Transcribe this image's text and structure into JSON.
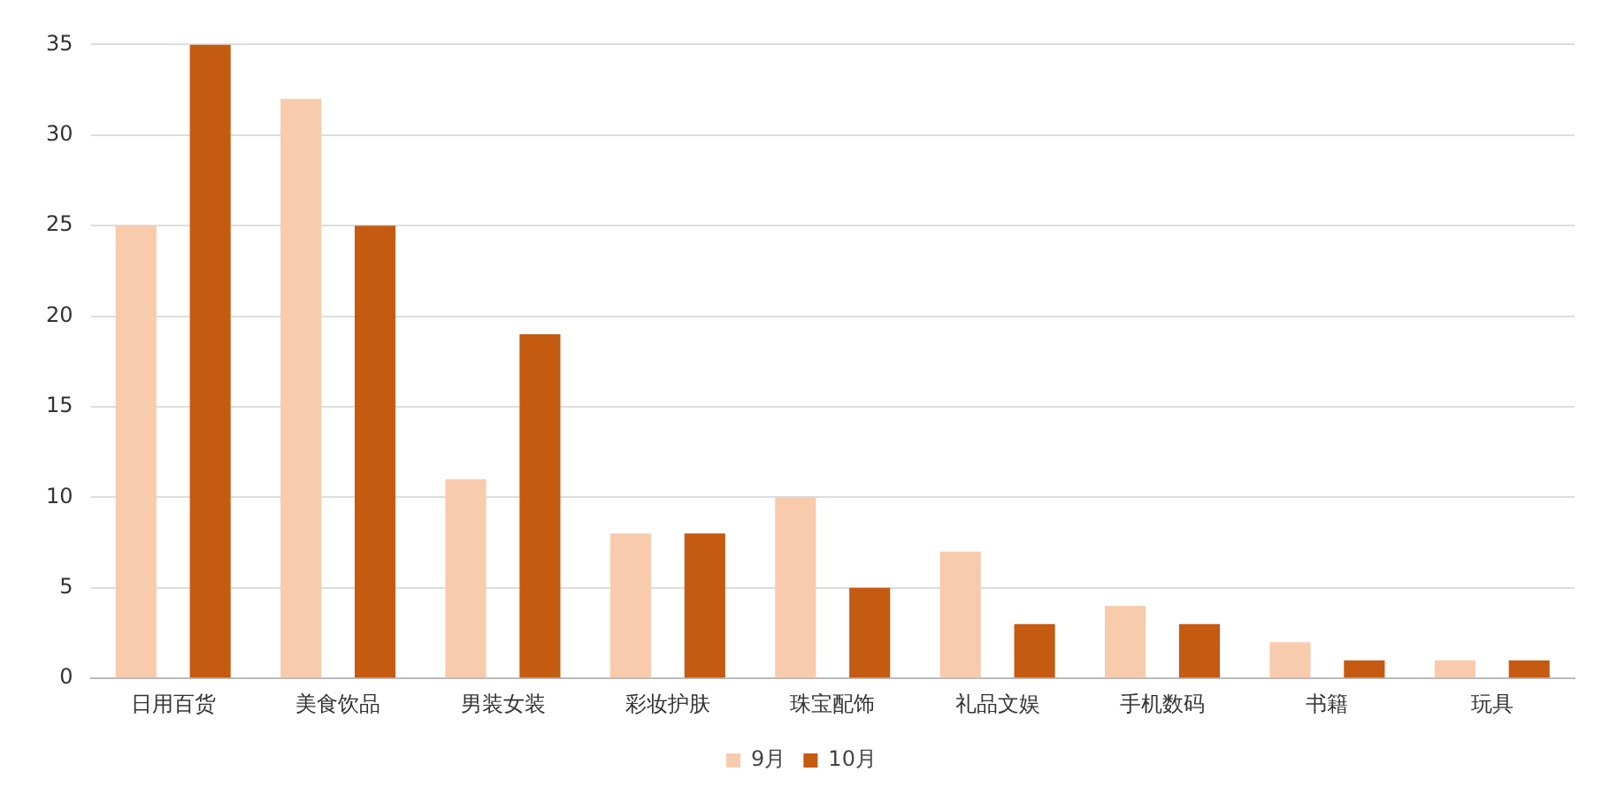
{
  "chart_data": {
    "type": "bar",
    "categories": [
      "日用百货",
      "美食饮品",
      "男装女装",
      "彩妆护肤",
      "珠宝配饰",
      "礼品文娱",
      "手机数码",
      "书籍",
      "玩具"
    ],
    "series": [
      {
        "name": "9月",
        "color": "#f8cbad",
        "values": [
          25,
          32,
          11,
          8,
          10,
          7,
          4,
          2,
          1
        ]
      },
      {
        "name": "10月",
        "color": "#c55a11",
        "values": [
          35,
          25,
          19,
          8,
          5,
          3,
          3,
          1,
          1
        ]
      }
    ],
    "ylim": [
      0,
      35
    ],
    "yticks": [
      0,
      5,
      10,
      15,
      20,
      25,
      30,
      35
    ],
    "grid": "y",
    "legend": "bottom"
  }
}
